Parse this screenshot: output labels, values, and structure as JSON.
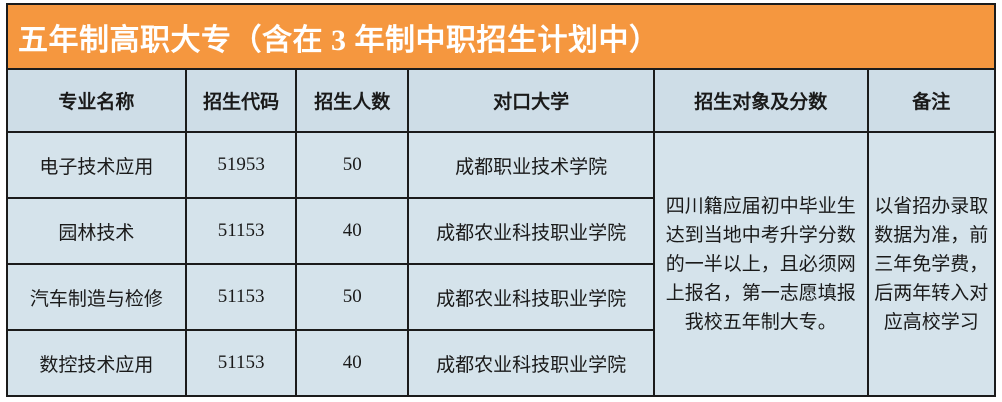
{
  "banner": {
    "title": "五年制高职大专（含在 3 年制中职招生计划中）"
  },
  "table": {
    "headers": {
      "major": "专业名称",
      "code": "招生代码",
      "quota": "招生人数",
      "college": "对口大学",
      "target": "招生对象及分数",
      "remark": "备注"
    },
    "rows": [
      {
        "major": "电子技术应用",
        "code": "51953",
        "quota": "50",
        "college": "成都职业技术学院"
      },
      {
        "major": "园林技术",
        "code": "51153",
        "quota": "40",
        "college": "成都农业科技职业学院"
      },
      {
        "major": "汽车制造与检修",
        "code": "51153",
        "quota": "50",
        "college": "成都农业科技职业学院"
      },
      {
        "major": "数控技术应用",
        "code": "51153",
        "quota": "40",
        "college": "成都农业科技职业学院"
      }
    ],
    "target_and_score": "四川籍应届初中毕业生达到当地中考升学分数的一半以上，且必须网上报名，第一志愿填报我校五年制大专。",
    "remark": "以省招办录取数据为准，前三年免学费，后两年转入对应高校学习"
  },
  "colors": {
    "banner_bg": "#F5973F",
    "banner_text": "#FFFFFF",
    "header_bg": "#CEDDE7",
    "cell_bg": "#D5E3EB",
    "border": "#1B1B1B",
    "body_text": "#1A1A1A"
  }
}
